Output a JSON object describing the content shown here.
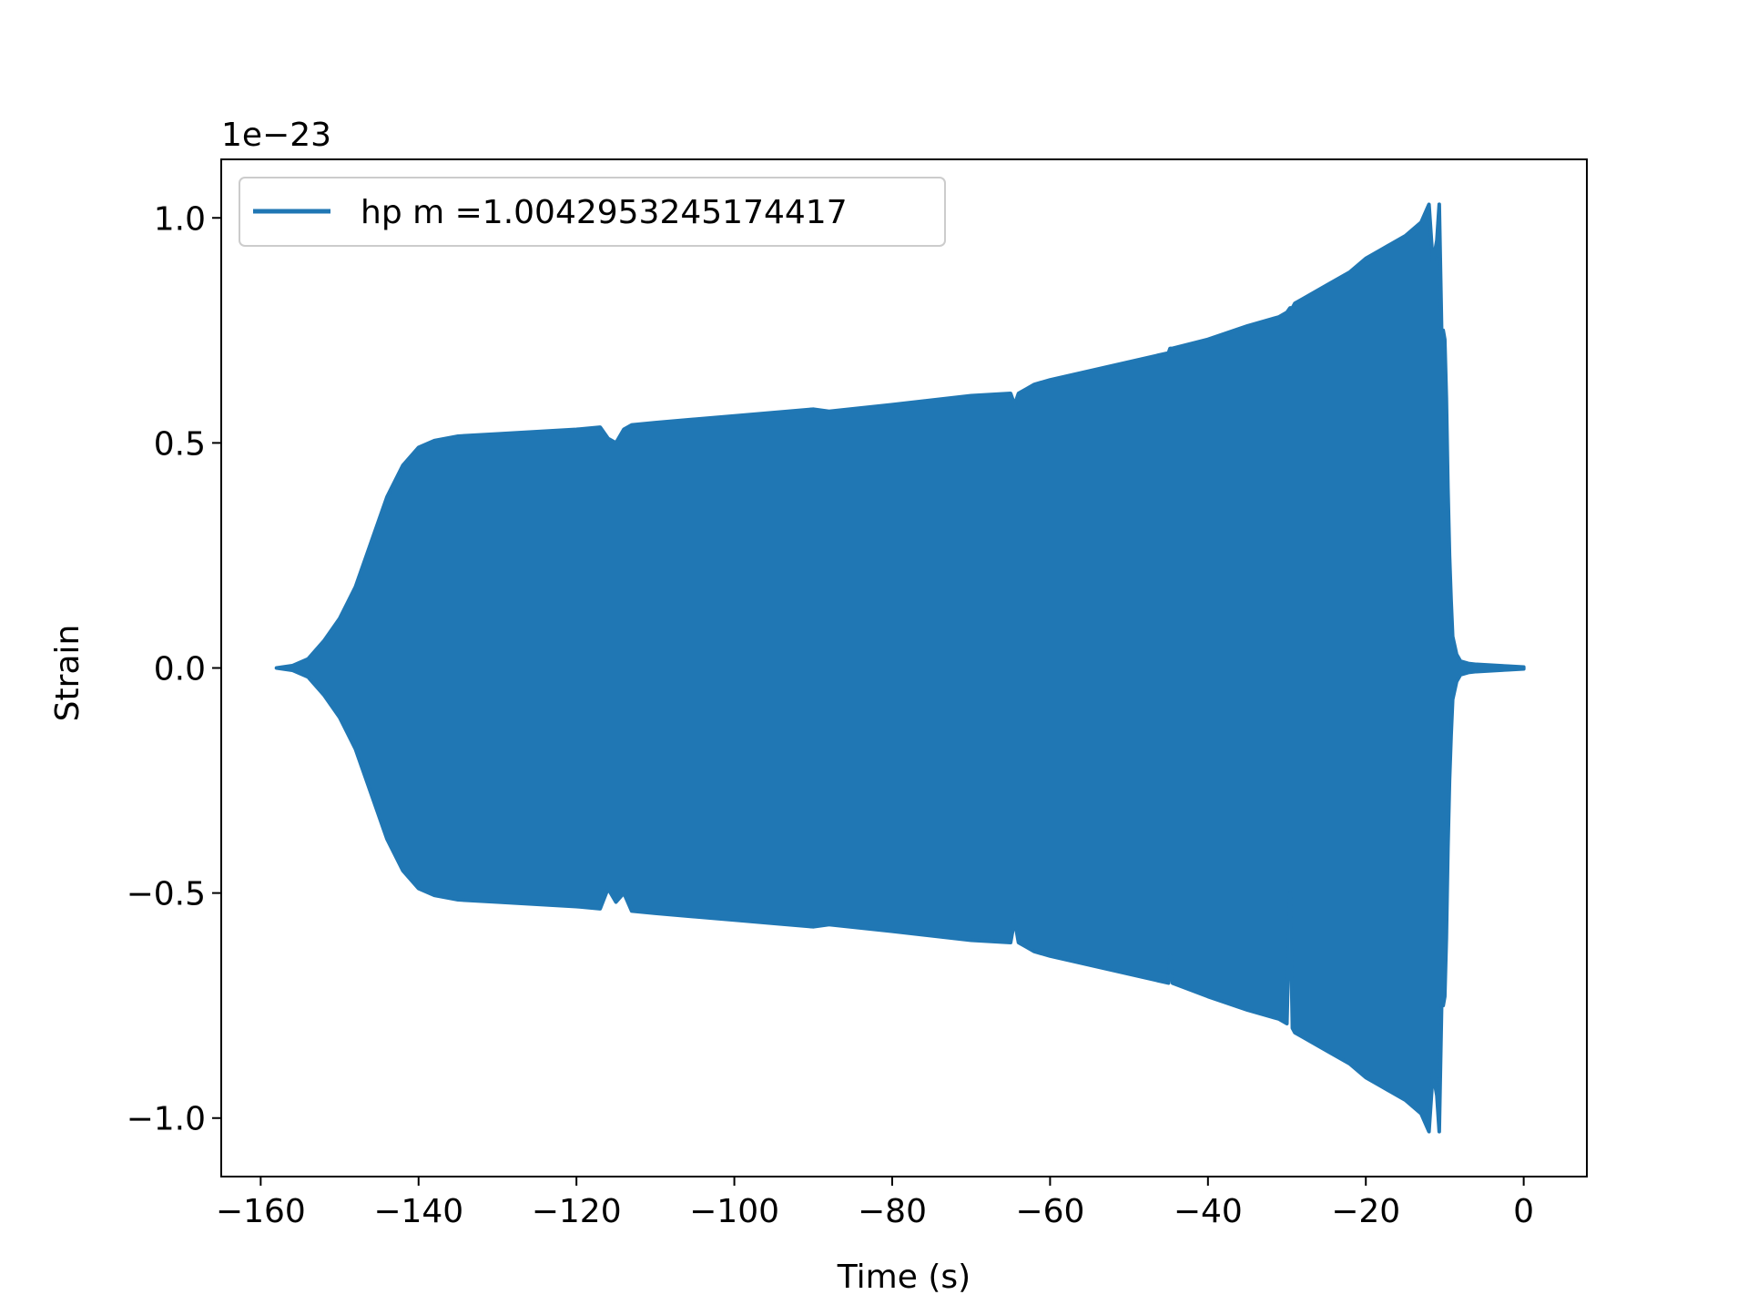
{
  "chart_data": {
    "type": "line",
    "title": "",
    "xlabel": "Time (s)",
    "ylabel": "Strain",
    "y_offset_label": "1e−23",
    "xlim": [
      -165,
      8
    ],
    "ylim": [
      -1.13,
      1.13
    ],
    "x_ticks": [
      -160,
      -140,
      -120,
      -100,
      -80,
      -60,
      -40,
      -20,
      0
    ],
    "x_tick_labels": [
      "−160",
      "−140",
      "−120",
      "−100",
      "−80",
      "−60",
      "−40",
      "−20",
      "0"
    ],
    "y_ticks": [
      -1.0,
      -0.5,
      0.0,
      0.5,
      1.0
    ],
    "y_tick_labels": [
      "−1.0",
      "−0.5",
      "0.0",
      "0.5",
      "1.0"
    ],
    "grid": false,
    "legend_position": "top-left",
    "color": "#2077b4",
    "series": [
      {
        "name": "hp m =1.0042953245174417",
        "envelope": {
          "x": [
            -158.0,
            -156.0,
            -154.0,
            -152.0,
            -150.0,
            -148.0,
            -146.0,
            -144.0,
            -142.0,
            -140.0,
            -138.0,
            -135.0,
            -130.0,
            -125.0,
            -120.0,
            -117.0,
            -116.0,
            -115.0,
            -114.0,
            -113.0,
            -110.0,
            -100.0,
            -90.0,
            -88.0,
            -80.0,
            -70.0,
            -65.0,
            -64.5,
            -64.0,
            -63.0,
            -62.0,
            -60.0,
            -55.0,
            -50.0,
            -45.0,
            -44.8,
            -44.5,
            -40.0,
            -35.0,
            -31.0,
            -30.0,
            -29.6,
            -29.3,
            -29.0,
            -28.0,
            -25.0,
            -22.0,
            -20.0,
            -18.0,
            -15.0,
            -13.0,
            -12.0,
            -11.5,
            -11.0,
            -10.7,
            -10.4,
            -10.2,
            -10.0,
            -9.8,
            -9.6,
            -9.4,
            -9.2,
            -9.0,
            -8.5,
            -8.0,
            -7.0,
            -6.0,
            -4.0,
            -2.0,
            0.0
          ],
          "upper": [
            0.0,
            0.005,
            0.02,
            0.06,
            0.11,
            0.18,
            0.28,
            0.38,
            0.45,
            0.49,
            0.505,
            0.515,
            0.52,
            0.525,
            0.53,
            0.535,
            0.51,
            0.5,
            0.53,
            0.54,
            0.545,
            0.56,
            0.575,
            0.57,
            0.585,
            0.605,
            0.61,
            0.585,
            0.61,
            0.62,
            0.63,
            0.64,
            0.66,
            0.68,
            0.7,
            0.71,
            0.71,
            0.73,
            0.76,
            0.78,
            0.79,
            0.8,
            0.8,
            0.81,
            0.82,
            0.85,
            0.88,
            0.91,
            0.93,
            0.96,
            0.99,
            1.03,
            0.9,
            0.95,
            1.03,
            0.75,
            0.75,
            0.73,
            0.6,
            0.4,
            0.25,
            0.15,
            0.07,
            0.03,
            0.015,
            0.01,
            0.008,
            0.006,
            0.004,
            0.002
          ],
          "lower": [
            0.0,
            -0.005,
            -0.02,
            -0.06,
            -0.11,
            -0.18,
            -0.28,
            -0.38,
            -0.45,
            -0.49,
            -0.505,
            -0.515,
            -0.52,
            -0.525,
            -0.53,
            -0.535,
            -0.49,
            -0.52,
            -0.5,
            -0.54,
            -0.545,
            -0.56,
            -0.575,
            -0.57,
            -0.585,
            -0.605,
            -0.61,
            -0.56,
            -0.61,
            -0.62,
            -0.63,
            -0.64,
            -0.66,
            -0.68,
            -0.7,
            -0.64,
            -0.7,
            -0.73,
            -0.76,
            -0.78,
            -0.79,
            -0.5,
            -0.8,
            -0.81,
            -0.82,
            -0.85,
            -0.88,
            -0.91,
            -0.93,
            -0.96,
            -0.99,
            -1.03,
            -0.9,
            -0.95,
            -1.03,
            -0.75,
            -0.75,
            -0.73,
            -0.6,
            -0.4,
            -0.25,
            -0.15,
            -0.07,
            -0.03,
            -0.015,
            -0.01,
            -0.008,
            -0.006,
            -0.004,
            -0.002
          ]
        }
      }
    ]
  }
}
